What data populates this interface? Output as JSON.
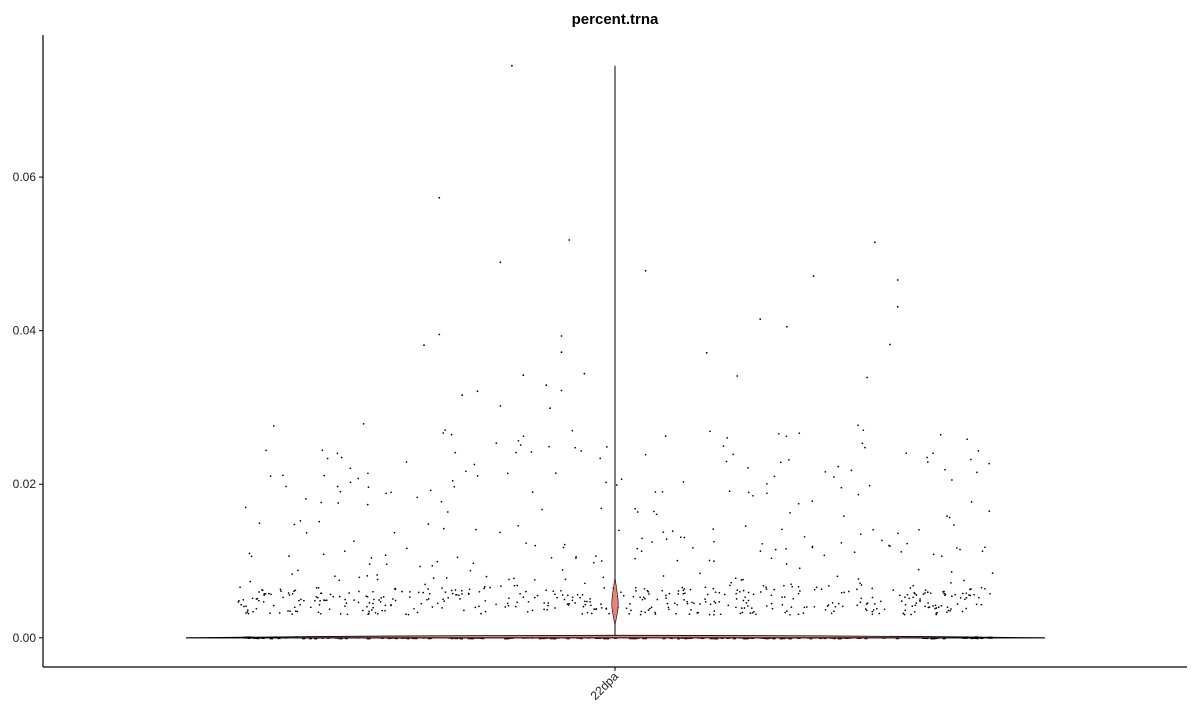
{
  "chart_data": {
    "type": "violin",
    "title": "percent.trna",
    "xlabel": "",
    "ylabel": "",
    "categories": [
      "22dpa"
    ],
    "ylim": [
      -0.0038,
      0.0785
    ],
    "yticks": [
      0.0,
      0.02,
      0.04,
      0.06
    ],
    "ytick_labels": [
      "0.00",
      "0.02",
      "0.04",
      "0.06"
    ],
    "grid": false,
    "legend": "none",
    "violin": {
      "category": "22dpa",
      "max": 0.0745,
      "median": 0.0043,
      "fill_color": "#e8837a"
    },
    "points_color": "#000000",
    "outlier_points": [
      [
        -0.135,
        0.0745
      ],
      [
        -0.23,
        0.0573
      ],
      [
        -0.23,
        0.0395
      ],
      [
        -0.25,
        0.0381
      ],
      [
        -0.06,
        0.0518
      ],
      [
        -0.07,
        0.0393
      ],
      [
        -0.07,
        0.0372
      ],
      [
        -0.07,
        0.0322
      ],
      [
        0.04,
        0.0478
      ],
      [
        0.26,
        0.0471
      ],
      [
        0.225,
        0.0405
      ],
      [
        0.12,
        0.0371
      ],
      [
        0.34,
        0.0515
      ],
      [
        0.37,
        0.0466
      ],
      [
        0.37,
        0.0431
      ],
      [
        0.36,
        0.0382
      ],
      [
        0.33,
        0.0339
      ],
      [
        0.19,
        0.0415
      ],
      [
        0.16,
        0.0341
      ],
      [
        -0.15,
        0.0489
      ],
      [
        -0.2,
        0.0316
      ],
      [
        -0.12,
        0.0342
      ],
      [
        -0.04,
        0.0344
      ],
      [
        -0.085,
        0.0299
      ],
      [
        -0.18,
        0.0321
      ],
      [
        -0.15,
        0.0302
      ],
      [
        -0.09,
        0.0329
      ]
    ],
    "dense_band": {
      "y_min": 0.003,
      "y_max": 0.0065,
      "count": 420
    },
    "sparse_band": {
      "y_min": 0.0065,
      "y_max": 0.028,
      "count": 260
    },
    "baseline": {
      "y": 0.0,
      "count": 1800
    }
  }
}
